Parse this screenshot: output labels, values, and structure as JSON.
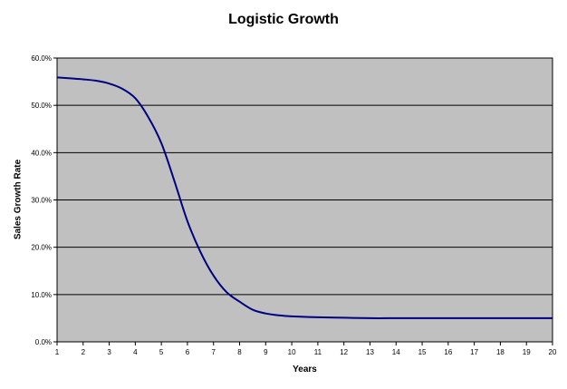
{
  "chart_data": {
    "type": "line",
    "title": "Logistic Growth",
    "xlabel": "Years",
    "ylabel": "Sales Growth Rate",
    "xlim": [
      1,
      20
    ],
    "ylim": [
      0,
      0.6
    ],
    "x_ticks": [
      "1",
      "2",
      "3",
      "4",
      "5",
      "6",
      "7",
      "8",
      "9",
      "10",
      "11",
      "12",
      "13",
      "14",
      "15",
      "16",
      "17",
      "18",
      "19",
      "20"
    ],
    "y_ticks": [
      "0.0%",
      "10.0%",
      "20.0%",
      "30.0%",
      "40.0%",
      "50.0%",
      "60.0%"
    ],
    "grid": true,
    "plot_background": "#c0c0c0",
    "series": [
      {
        "color": "#000080",
        "x": [
          1,
          1.5,
          2,
          2.5,
          3,
          3.5,
          4,
          4.5,
          5,
          5.5,
          6,
          6.5,
          7,
          7.5,
          8,
          8.5,
          9,
          9.5,
          10,
          11,
          12,
          13,
          14,
          15,
          16,
          17,
          18,
          19,
          20
        ],
        "y": [
          0.559,
          0.557,
          0.555,
          0.552,
          0.546,
          0.535,
          0.515,
          0.475,
          0.42,
          0.34,
          0.255,
          0.19,
          0.14,
          0.105,
          0.085,
          0.068,
          0.06,
          0.056,
          0.054,
          0.052,
          0.051,
          0.05,
          0.05,
          0.05,
          0.05,
          0.05,
          0.05,
          0.05,
          0.05
        ]
      }
    ]
  }
}
